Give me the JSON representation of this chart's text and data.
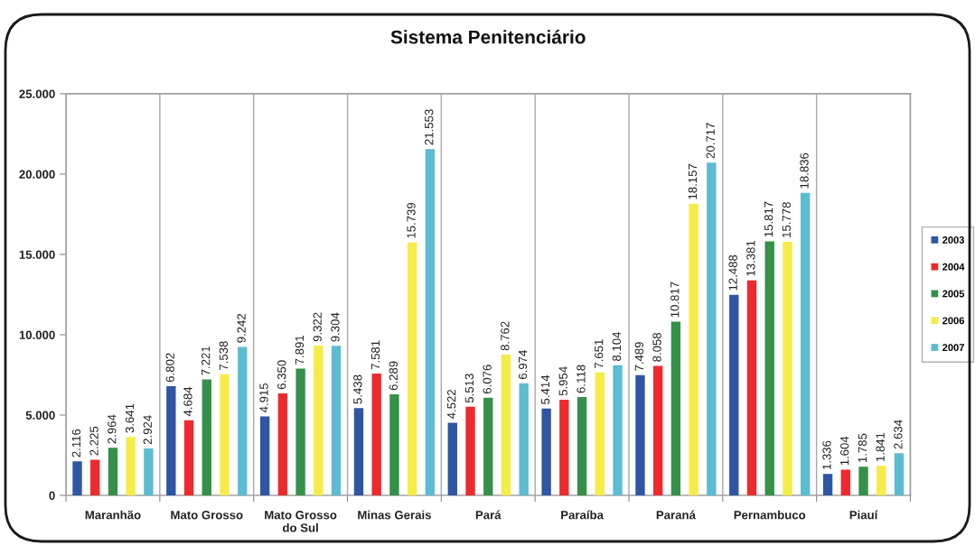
{
  "chart_data": {
    "type": "bar",
    "title": "Sistema Penitenciário",
    "categories": [
      "Maranhão",
      "Mato Grosso",
      "Mato Grosso\ndo Sul",
      "Minas Gerais",
      "Pará",
      "Paraíba",
      "Paraná",
      "Pernambuco",
      "Piauí"
    ],
    "series": [
      {
        "name": "2003",
        "color": "#2f55a5",
        "values": [
          2116,
          6802,
          4915,
          5438,
          4522,
          5414,
          7489,
          12488,
          1336
        ],
        "value_labels": [
          "2.116",
          "6.802",
          "4.915",
          "5.438",
          "4.522",
          "5.414",
          "7.489",
          "12.488",
          "1.336"
        ]
      },
      {
        "name": "2004",
        "color": "#ee2a2e",
        "values": [
          2225,
          4684,
          6350,
          7581,
          5513,
          5954,
          8058,
          13381,
          1604
        ],
        "value_labels": [
          "2.225",
          "4.684",
          "6.350",
          "7.581",
          "5.513",
          "5.954",
          "8.058",
          "13.381",
          "1.604"
        ]
      },
      {
        "name": "2005",
        "color": "#35904a",
        "values": [
          2964,
          7221,
          7891,
          6289,
          6076,
          6118,
          10817,
          15817,
          1785
        ],
        "value_labels": [
          "2.964",
          "7.221",
          "7.891",
          "6.289",
          "6.076",
          "6.118",
          "10.817",
          "15.817",
          "1.785"
        ]
      },
      {
        "name": "2006",
        "color": "#f5ec48",
        "values": [
          3641,
          7538,
          9322,
          15739,
          8762,
          7651,
          18157,
          15778,
          1841
        ],
        "value_labels": [
          "3.641",
          "7.538",
          "9.322",
          "15.739",
          "8.762",
          "7.651",
          "18.157",
          "15.778",
          "1.841"
        ]
      },
      {
        "name": "2007",
        "color": "#5cbcd1",
        "values": [
          2924,
          9242,
          9304,
          21553,
          6974,
          8104,
          20717,
          18836,
          2634
        ],
        "value_labels": [
          "2.924",
          "9.242",
          "9.304",
          "21.553",
          "6.974",
          "8.104",
          "20.717",
          "18.836",
          "2.634"
        ]
      }
    ],
    "ylim": [
      0,
      25000
    ],
    "yticks": [
      0,
      {
        "value": 5000,
        "label": "5.000"
      },
      {
        "value": 10000,
        "label": "10.000"
      },
      {
        "value": 15000,
        "label": "15.000"
      },
      {
        "value": 20000,
        "label": "20.000"
      },
      {
        "value": 25000,
        "label": "25.000"
      }
    ],
    "grid": "x",
    "legend": "right"
  }
}
